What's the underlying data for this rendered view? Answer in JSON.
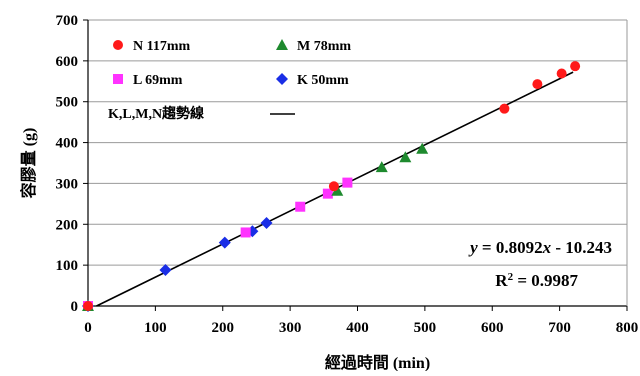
{
  "chart_data": {
    "type": "scatter",
    "title": "",
    "xlabel": "經過時間 (min)",
    "ylabel": "容膠量 (g)",
    "xlim": [
      0,
      800
    ],
    "ylim": [
      0,
      700
    ],
    "x_ticks": [
      "0",
      "100",
      "200",
      "300",
      "400",
      "500",
      "600",
      "700",
      "800"
    ],
    "y_ticks": [
      "0",
      "100",
      "200",
      "300",
      "400",
      "500",
      "600",
      "700"
    ],
    "grid": "horizontal",
    "legend_position": "top-left",
    "series": [
      {
        "name": "N 117mm",
        "marker": "circle",
        "color": "#ff1a1a",
        "points": [
          [
            0,
            0
          ],
          [
            365,
            293
          ],
          [
            618,
            483
          ],
          [
            667,
            543
          ],
          [
            703,
            569
          ],
          [
            723,
            587
          ]
        ]
      },
      {
        "name": "M 78mm",
        "marker": "triangle",
        "color": "#1e8a2e",
        "points": [
          [
            0,
            0
          ],
          [
            370,
            282
          ],
          [
            436,
            340
          ],
          [
            471,
            364
          ],
          [
            496,
            385
          ]
        ]
      },
      {
        "name": "L 69mm",
        "marker": "square",
        "color": "#ff33ff",
        "points": [
          [
            0,
            0
          ],
          [
            234,
            180
          ],
          [
            315,
            243
          ],
          [
            356,
            275
          ],
          [
            385,
            302
          ]
        ]
      },
      {
        "name": "K 50mm",
        "marker": "diamond",
        "color": "#1a2ee6",
        "points": [
          [
            0,
            0
          ],
          [
            115,
            88
          ],
          [
            203,
            155
          ],
          [
            244,
            183
          ],
          [
            265,
            203
          ]
        ]
      }
    ],
    "trendline": {
      "name": "K,L,M,N趨勢線",
      "slope": 0.8092,
      "intercept": -10.243,
      "x_range": [
        12.66,
        720
      ],
      "color": "#000000"
    },
    "annotations": {
      "equation_y": "y",
      "equation_mid": " = 0.8092",
      "equation_x": "x",
      "equation_end": " - 10.243",
      "r2_prefix": "R",
      "r2_exp": "2",
      "r2_value": " = 0.9987"
    }
  }
}
